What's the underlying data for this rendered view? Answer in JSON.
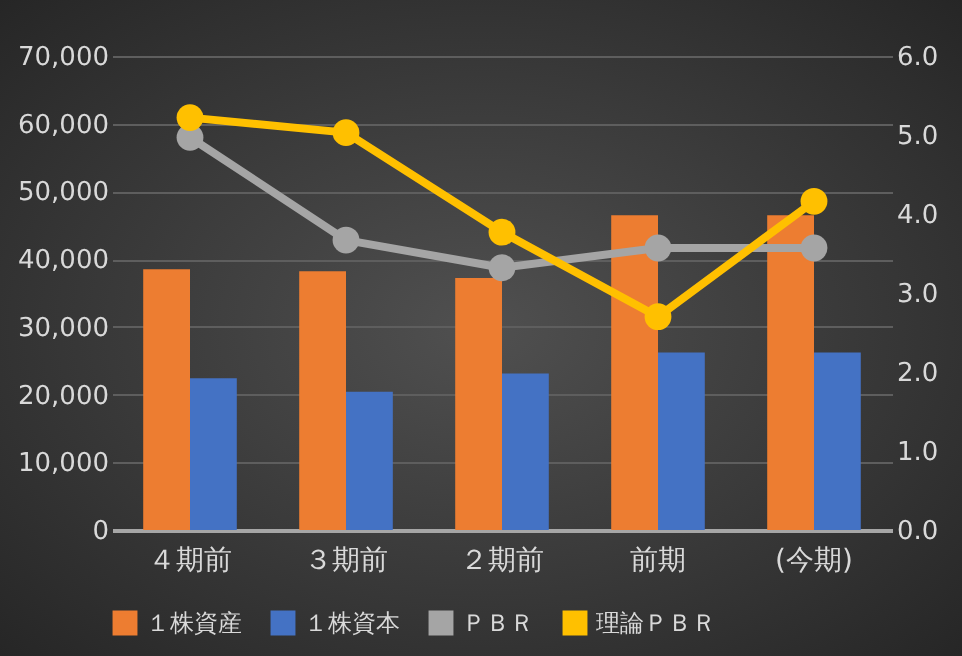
{
  "chart_data": {
    "type": "bar",
    "categories": [
      "４期前",
      "３期前",
      "２期前",
      "前期",
      "(今期)"
    ],
    "series": [
      {
        "name": "１株資産",
        "color": "#ed7d31",
        "values": [
          38500,
          38200,
          37200,
          46500,
          46500
        ]
      },
      {
        "name": "１株資本",
        "color": "#4472c4",
        "values": [
          22400,
          20400,
          23100,
          26200,
          26200
        ]
      },
      {
        "name": "ＰＢＲ",
        "type": "line",
        "axis": "y2",
        "color": "#a5a5a5",
        "values": [
          4.97,
          3.67,
          3.32,
          3.57,
          3.57
        ]
      },
      {
        "name": "理論ＰＢＲ",
        "type": "line",
        "axis": "y2",
        "color": "#ffc000",
        "values": [
          5.22,
          5.03,
          3.77,
          2.7,
          4.16
        ]
      }
    ],
    "ylim": [
      0,
      70000
    ],
    "yticks": [
      0,
      {
        "value": 10000,
        "label": "10,000"
      },
      {
        "value": 20000,
        "label": "20,000"
      },
      {
        "value": 30000,
        "label": "30,000"
      },
      {
        "value": 40000,
        "label": "40,000"
      },
      {
        "value": 50000,
        "label": "50,000"
      },
      {
        "value": 60000,
        "label": "60,000"
      },
      {
        "value": 70000,
        "label": "70,000"
      }
    ],
    "y2lim": [
      0,
      6
    ],
    "y2ticks": [
      {
        "value": 0,
        "label": "0.0"
      },
      {
        "value": 1,
        "label": "1.0"
      },
      {
        "value": 2,
        "label": "2.0"
      },
      {
        "value": 3,
        "label": "3.0"
      },
      {
        "value": 4,
        "label": "4.0"
      },
      {
        "value": 5,
        "label": "5.0"
      },
      {
        "value": 6,
        "label": "6.0"
      }
    ],
    "grid": "y",
    "legend": "bottom",
    "marker": "circle"
  }
}
